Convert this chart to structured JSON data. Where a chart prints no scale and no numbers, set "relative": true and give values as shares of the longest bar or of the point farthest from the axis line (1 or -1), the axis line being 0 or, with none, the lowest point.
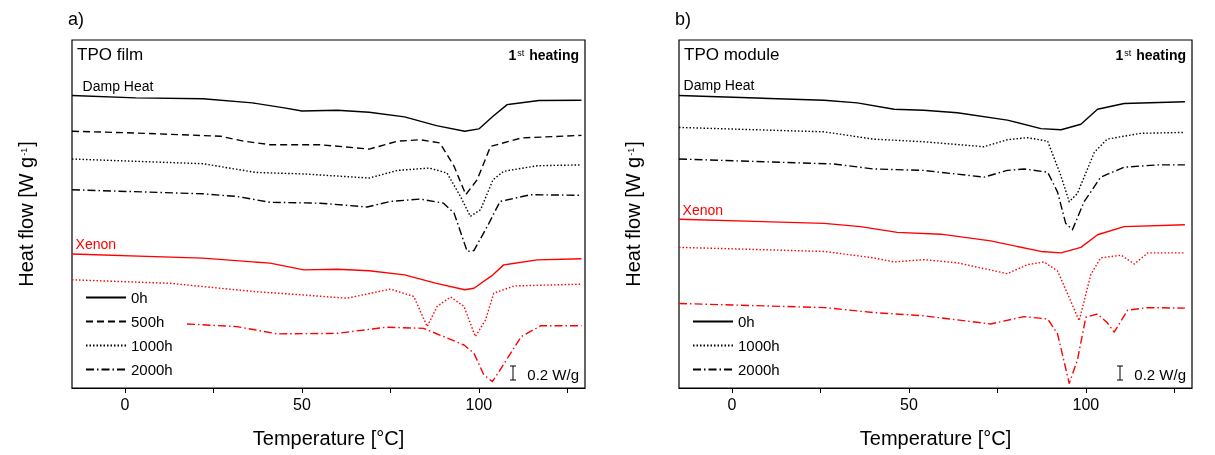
{
  "chart_data": [
    {
      "type": "line",
      "title": "a)",
      "subtitle": "TPO film",
      "xlabel": "Temperature [°C]",
      "ylabel": "Heat flow [W g$^{-1}$]",
      "relative": true,
      "marker": "none",
      "legend": "bottom left",
      "xlim": [
        -15,
        130
      ],
      "xticks": [
        0,
        {
          "value": 25,
          "label": null
        },
        50,
        {
          "value": 75,
          "label": null
        },
        100,
        {
          "value": 125,
          "label": null
        }
      ],
      "annotations": [
        "1$^{st}$ heating",
        "0.2 W/g",
        {
          "text": "Damp Heat",
          "x": -12,
          "y": 1.01
        },
        {
          "text": "Xenon",
          "x": -14,
          "y": 0.47
        }
      ],
      "series": [
        {
          "name": "0h",
          "color": "#000000",
          "line_style": "solid",
          "x": [
            -15,
            3,
            22,
            36,
            45,
            50,
            60,
            69,
            79,
            88,
            96,
            100,
            104,
            108,
            117,
            129
          ],
          "values": [
            1.0,
            0.992,
            0.989,
            0.975,
            0.958,
            0.947,
            0.95,
            0.943,
            0.927,
            0.897,
            0.878,
            0.886,
            0.929,
            0.969,
            0.983,
            0.984
          ]
        },
        {
          "name": "500h",
          "color": "#000000",
          "line_style": "dashed",
          "x": [
            -15,
            3,
            27,
            33.5,
            41,
            55,
            69,
            77,
            83.5,
            89,
            93,
            96.3,
            99.5,
            103.3,
            112,
            129
          ],
          "values": [
            0.878,
            0.872,
            0.861,
            0.844,
            0.832,
            0.832,
            0.817,
            0.844,
            0.849,
            0.838,
            0.758,
            0.661,
            0.712,
            0.826,
            0.855,
            0.864
          ]
        },
        {
          "name": "1000h",
          "color": "#000000",
          "line_style": "dotted",
          "x": [
            -15,
            22,
            37,
            50.5,
            69,
            77,
            86,
            91,
            94.8,
            97.6,
            100.5,
            104,
            107,
            116.5,
            129
          ],
          "values": [
            0.783,
            0.767,
            0.737,
            0.732,
            0.718,
            0.744,
            0.752,
            0.735,
            0.655,
            0.587,
            0.61,
            0.712,
            0.741,
            0.76,
            0.763
          ]
        },
        {
          "name": "2000h",
          "color": "#000000",
          "line_style": "dashdot",
          "x": [
            -15,
            22,
            31.6,
            41,
            55,
            68.4,
            75,
            83.5,
            90,
            93,
            96.7,
            98.6,
            102.4,
            106,
            114.6,
            129
          ],
          "values": [
            0.678,
            0.664,
            0.655,
            0.635,
            0.632,
            0.619,
            0.638,
            0.646,
            0.632,
            0.598,
            0.467,
            0.47,
            0.553,
            0.638,
            0.661,
            0.659
          ]
        },
        {
          "color": "#ff0000",
          "line_style": "solid",
          "x": [
            -15,
            22,
            41,
            50.5,
            60,
            69,
            79,
            88,
            96,
            98.6,
            104,
            107,
            116.5,
            129
          ],
          "values": [
            0.458,
            0.444,
            0.427,
            0.404,
            0.406,
            0.401,
            0.387,
            0.358,
            0.336,
            0.341,
            0.387,
            0.421,
            0.438,
            0.442
          ]
        },
        {
          "color": "#ff0000",
          "line_style": "dotted",
          "x": [
            -15,
            12.7,
            36.3,
            50.5,
            62.7,
            75,
            81.6,
            85.4,
            88.2,
            92,
            95.8,
            99,
            101.9,
            104.2,
            110,
            129
          ],
          "values": [
            0.37,
            0.358,
            0.33,
            0.318,
            0.307,
            0.338,
            0.313,
            0.21,
            0.279,
            0.311,
            0.279,
            0.176,
            0.233,
            0.324,
            0.349,
            0.355
          ]
        },
        {
          "color": "#ff0000",
          "line_style": "dashdot",
          "x": [
            17.5,
            31.6,
            43,
            60,
            74,
            84.4,
            95.8,
            98.6,
            101.4,
            103.8,
            106,
            112,
            117.5,
            129
          ],
          "values": [
            0.219,
            0.21,
            0.185,
            0.187,
            0.208,
            0.204,
            0.147,
            0.119,
            0.045,
            0.022,
            0.062,
            0.176,
            0.213,
            0.213
          ]
        }
      ]
    },
    {
      "type": "line",
      "title": "b)",
      "subtitle": "TPO module",
      "xlabel": "Temperature [°C]",
      "ylabel": "Heat flow [W g$^{-1}$]",
      "relative": true,
      "marker": "none",
      "legend": "bottom left",
      "xlim": [
        -15,
        130
      ],
      "xticks": [
        0,
        {
          "value": 25,
          "label": null
        },
        50,
        {
          "value": 75,
          "label": null
        },
        100,
        {
          "value": 125,
          "label": null
        }
      ],
      "annotations": [
        "1$^{st}$ heating",
        "0.2 W/g",
        {
          "text": "Damp Heat",
          "x": -13.7,
          "y": 1.011
        },
        {
          "text": "Xenon",
          "x": -14,
          "y": 0.586
        }
      ],
      "series": [
        {
          "name": "0h",
          "color": "#000000",
          "line_style": "solid",
          "x": [
            -15,
            26,
            35.4,
            45.8,
            54.2,
            63.7,
            77.8,
            87.3,
            93,
            98.6,
            103.3,
            110.8,
            128
          ],
          "values": [
            1.0,
            0.984,
            0.975,
            0.953,
            0.95,
            0.941,
            0.916,
            0.887,
            0.883,
            0.902,
            0.953,
            0.973,
            0.979
          ]
        },
        {
          "name": "1000h",
          "color": "#000000",
          "line_style": "dotted",
          "x": [
            -15,
            26,
            40,
            54.2,
            71.2,
            77.8,
            83.5,
            89.2,
            92.9,
            95.3,
            97.6,
            102.4,
            106,
            115.6,
            128
          ],
          "values": [
            0.891,
            0.876,
            0.851,
            0.842,
            0.825,
            0.849,
            0.856,
            0.844,
            0.727,
            0.637,
            0.665,
            0.806,
            0.851,
            0.871,
            0.874
          ]
        },
        {
          "name": "2000h",
          "color": "#000000",
          "line_style": "dashdot",
          "x": [
            -15,
            28.8,
            40,
            54.2,
            71.2,
            77.8,
            82.5,
            89.2,
            92,
            94.3,
            96.2,
            99.5,
            104.2,
            110.8,
            120.3,
            128
          ],
          "values": [
            0.783,
            0.766,
            0.749,
            0.744,
            0.721,
            0.744,
            0.749,
            0.738,
            0.67,
            0.563,
            0.541,
            0.637,
            0.721,
            0.755,
            0.763,
            0.763
          ]
        },
        {
          "color": "#ff0000",
          "line_style": "solid",
          "x": [
            -15,
            26,
            36.3,
            46.7,
            59,
            73.1,
            87.3,
            93,
            98.6,
            103.3,
            110.8,
            128
          ],
          "values": [
            0.577,
            0.563,
            0.552,
            0.532,
            0.526,
            0.503,
            0.467,
            0.462,
            0.481,
            0.524,
            0.552,
            0.558
          ]
        },
        {
          "color": "#ff0000",
          "line_style": "dotted",
          "x": [
            -15,
            26,
            40,
            45.8,
            54.2,
            63.7,
            77.8,
            83.5,
            88.2,
            92,
            95.3,
            98.1,
            101.4,
            104.2,
            110,
            113.7,
            117.5,
            128
          ],
          "values": [
            0.481,
            0.467,
            0.445,
            0.431,
            0.439,
            0.428,
            0.391,
            0.422,
            0.431,
            0.4,
            0.309,
            0.23,
            0.388,
            0.445,
            0.454,
            0.424,
            0.462,
            0.462
          ]
        },
        {
          "color": "#ff0000",
          "line_style": "dashdot",
          "x": [
            -15,
            26,
            40,
            54.2,
            73.1,
            82.5,
            89.2,
            92,
            95.3,
            97.6,
            100,
            103.3,
            106,
            108,
            111.8,
            117.5,
            128
          ],
          "values": [
            0.289,
            0.275,
            0.258,
            0.247,
            0.219,
            0.244,
            0.236,
            0.185,
            0.016,
            0.095,
            0.242,
            0.253,
            0.224,
            0.191,
            0.266,
            0.275,
            0.273
          ]
        }
      ]
    }
  ]
}
